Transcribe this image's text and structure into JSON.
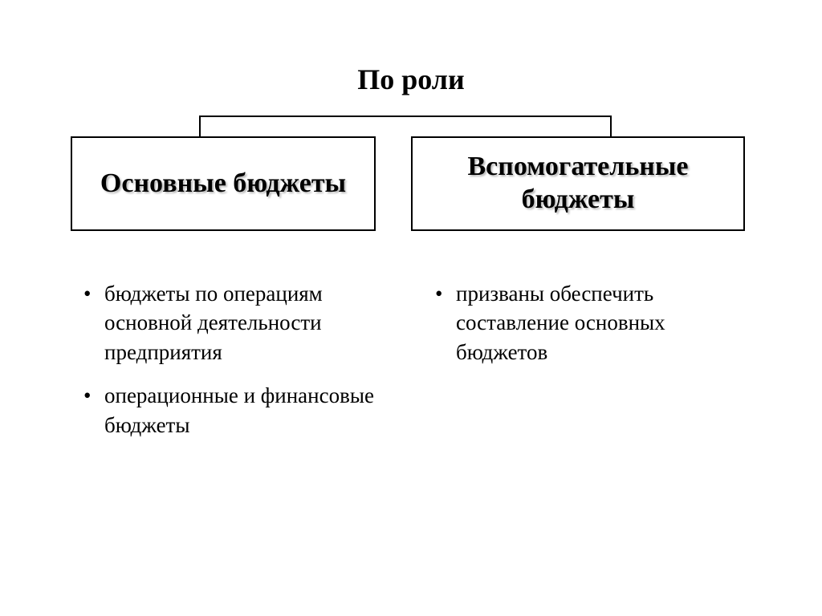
{
  "diagram": {
    "type": "tree",
    "background_color": "#ffffff",
    "border_color": "#000000",
    "text_color": "#000000",
    "connector_color": "#000000",
    "connector_width": 2,
    "title": "По роли",
    "title_fontsize": 36,
    "title_fontweight": "bold",
    "box_border_width": 2,
    "box_fontsize": 34,
    "box_fontweight": "bold",
    "box_shadow_color": "#bbbbbb",
    "bullet_fontsize": 27,
    "left": {
      "heading": "Основные бюджеты",
      "bullets": [
        "бюджеты по операциям основной деятельности предприятия",
        "операционные и финансовые бюджеты"
      ]
    },
    "right": {
      "heading": "Вспомогательные бюджеты",
      "bullets": [
        "призваны обеспечить составление основных бюджетов"
      ]
    }
  }
}
